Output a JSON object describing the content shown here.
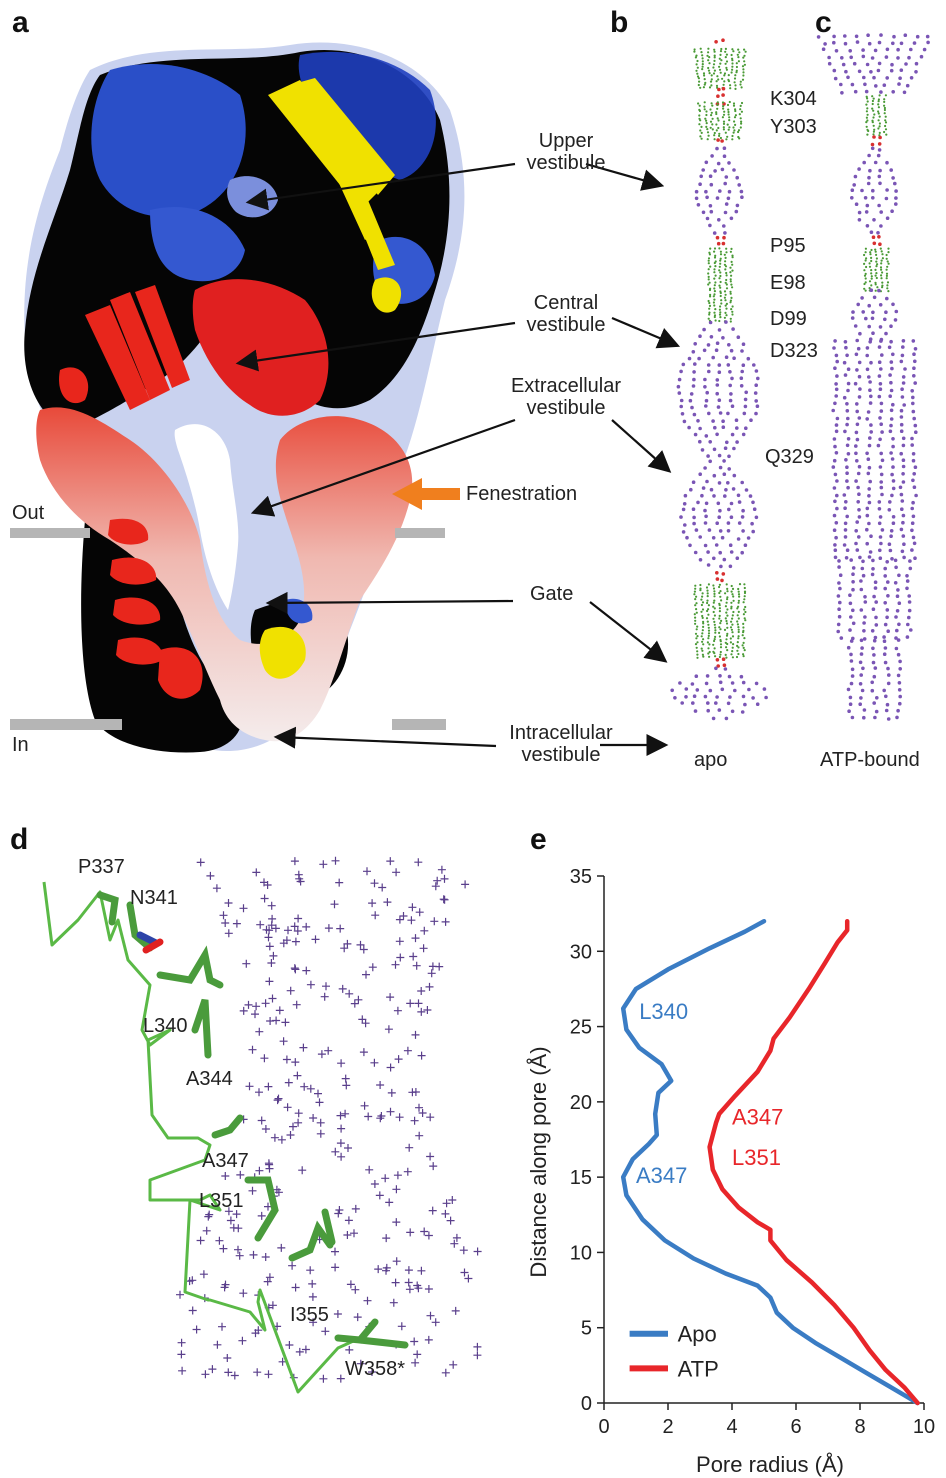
{
  "panels": {
    "a": "a",
    "b": "b",
    "c": "c",
    "d": "d",
    "e": "e"
  },
  "panel_a": {
    "labels": {
      "upper_vestibule": [
        "Upper",
        "vestibule"
      ],
      "central_vestibule": [
        "Central",
        "vestibule"
      ],
      "extracellular_vestibule": [
        "Extracellular",
        "vestibule"
      ],
      "fenestration": "Fenestration",
      "gate": "Gate",
      "intracellular_vestibule": [
        "Intracellular",
        "vestibule"
      ]
    },
    "membrane": {
      "out": "Out",
      "in": "In"
    },
    "colors": {
      "positive": "#1f3fbf",
      "negative": "#e02020",
      "neutral": "#f2eaea",
      "helix_a": "#e8261c",
      "helix_b": "#f0e100",
      "arrow_orange": "#f07f1e"
    }
  },
  "panel_b": {
    "residues": [
      "K304",
      "Y303",
      "P95",
      "E98",
      "D99",
      "D323",
      "Q329"
    ],
    "caption": "apo"
  },
  "panel_c": {
    "caption": "ATP-bound"
  },
  "panel_d": {
    "residues": [
      "P337",
      "N341",
      "L340",
      "A344",
      "A347",
      "L351",
      "I355",
      "W358*"
    ],
    "colors": {
      "backbone": "#5ab946",
      "crosses": "#5a3f8c"
    }
  },
  "chart_data": {
    "type": "line",
    "xlabel": "Pore radius (Å)",
    "ylabel": "Distance along pore (Å)",
    "xlim": [
      0,
      10
    ],
    "ylim": [
      0,
      35
    ],
    "xticks": [
      0,
      2,
      4,
      6,
      8,
      10
    ],
    "yticks": [
      0,
      5,
      10,
      15,
      20,
      25,
      30,
      35
    ],
    "grid": false,
    "legend_position": "bottom-left",
    "series": [
      {
        "name": "Apo",
        "color": "#3a7cc4",
        "points": [
          [
            9.8,
            0
          ],
          [
            9.0,
            1
          ],
          [
            8.2,
            2
          ],
          [
            7.4,
            3
          ],
          [
            6.6,
            4
          ],
          [
            5.9,
            5
          ],
          [
            5.4,
            6
          ],
          [
            5.2,
            7
          ],
          [
            4.8,
            7.8
          ],
          [
            3.8,
            8.6
          ],
          [
            2.8,
            9.6
          ],
          [
            1.9,
            10.8
          ],
          [
            1.2,
            12.2
          ],
          [
            0.7,
            13.8
          ],
          [
            0.6,
            15.0
          ],
          [
            0.9,
            16.2
          ],
          [
            1.4,
            17.2
          ],
          [
            1.65,
            17.8
          ],
          [
            1.6,
            19.2
          ],
          [
            1.7,
            20.6
          ],
          [
            2.1,
            21.4
          ],
          [
            1.8,
            22.5
          ],
          [
            1.1,
            23.6
          ],
          [
            0.7,
            24.8
          ],
          [
            0.6,
            26.2
          ],
          [
            1.0,
            27.5
          ],
          [
            2.0,
            28.8
          ],
          [
            3.3,
            30.2
          ],
          [
            4.4,
            31.3
          ],
          [
            5.0,
            32.0
          ]
        ]
      },
      {
        "name": "ATP",
        "color": "#e8262a",
        "points": [
          [
            9.8,
            0
          ],
          [
            9.4,
            1
          ],
          [
            8.8,
            2.2
          ],
          [
            8.3,
            3.5
          ],
          [
            7.8,
            5
          ],
          [
            7.2,
            6.5
          ],
          [
            6.5,
            8
          ],
          [
            5.7,
            9.5
          ],
          [
            5.2,
            10.8
          ],
          [
            5.2,
            11.5
          ],
          [
            4.8,
            12.0
          ],
          [
            4.2,
            13.0
          ],
          [
            3.7,
            14.2
          ],
          [
            3.4,
            15.5
          ],
          [
            3.3,
            17.0
          ],
          [
            3.5,
            18.6
          ],
          [
            3.6,
            19.2
          ],
          [
            4.1,
            20.4
          ],
          [
            4.8,
            22.0
          ],
          [
            5.2,
            23.4
          ],
          [
            5.3,
            24.2
          ],
          [
            5.8,
            25.6
          ],
          [
            6.4,
            27.5
          ],
          [
            6.9,
            29.2
          ],
          [
            7.3,
            30.6
          ],
          [
            7.6,
            31.4
          ],
          [
            7.6,
            32.0
          ]
        ]
      }
    ],
    "annotations": [
      {
        "text": "L340",
        "color": "#3a7cc4"
      },
      {
        "text": "A347",
        "color": "#3a7cc4"
      },
      {
        "text": "A347",
        "color": "#e8262a"
      },
      {
        "text": "L351",
        "color": "#e8262a"
      }
    ]
  }
}
